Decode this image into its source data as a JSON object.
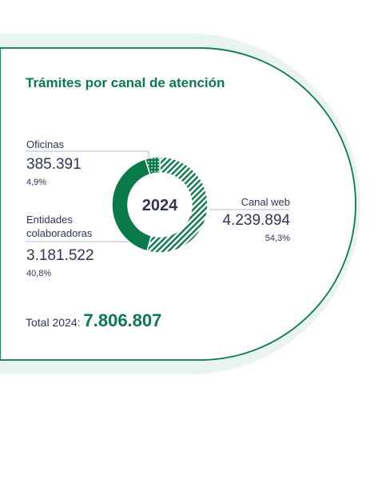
{
  "title": "Trámites por canal de atención",
  "colors": {
    "accent": "#0b7a4b",
    "text": "#2f3556",
    "card_border": "#0b7a4b",
    "card_halo": "#e6f2ee"
  },
  "chart_data": {
    "type": "pie",
    "style": "donut",
    "center_label": "2024",
    "slices": [
      {
        "name": "Canal web",
        "value": 4239894,
        "value_label": "4.239.894",
        "percent_label": "54,3%",
        "pattern": "diagonal-stripes",
        "color": "#0b7a4b"
      },
      {
        "name": "Entidades colaboradoras",
        "value": 3181522,
        "value_label": "3.181.522",
        "percent_label": "40,8%",
        "pattern": "solid",
        "color": "#0b7a4b"
      },
      {
        "name": "Oficinas",
        "value": 385391,
        "value_label": "385.391",
        "percent_label": "4,9%",
        "pattern": "dots",
        "color": "#0b7a4b"
      }
    ]
  },
  "total": {
    "label": "Total 2024:",
    "value": "7.806.807"
  }
}
